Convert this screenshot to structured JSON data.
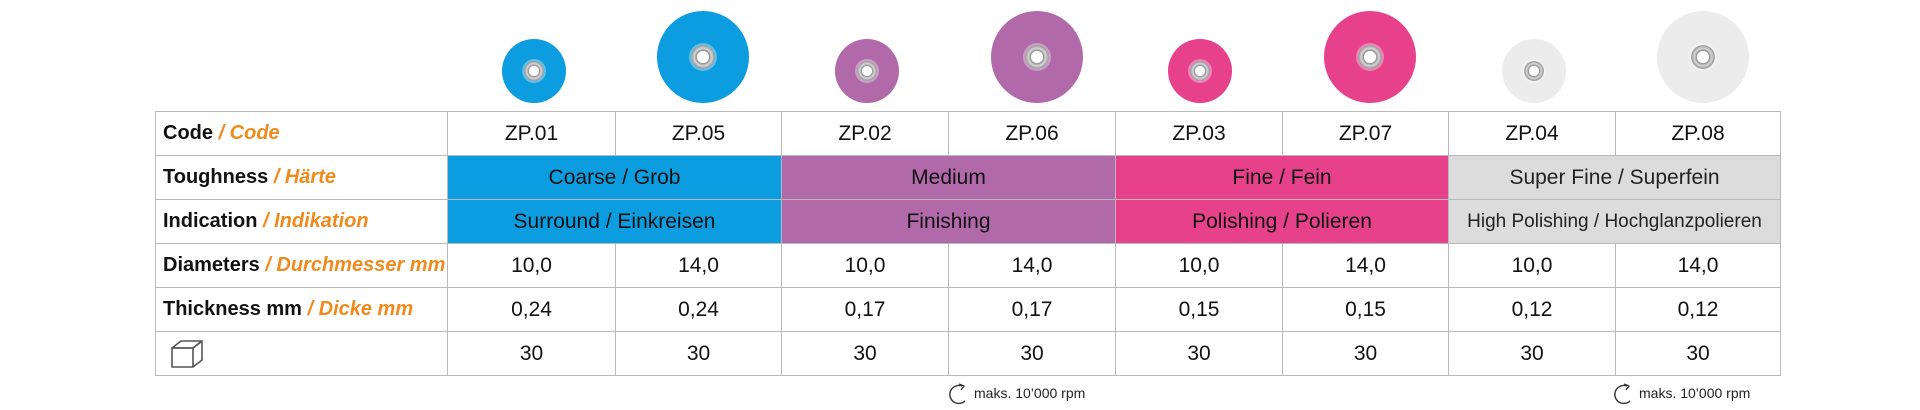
{
  "columns": [
    {
      "code": "ZP.01",
      "diameter": "10,0",
      "thickness": "0,24",
      "qty": "30",
      "color": "#0b9ddf",
      "size": "small"
    },
    {
      "code": "ZP.05",
      "diameter": "14,0",
      "thickness": "0,24",
      "qty": "30",
      "color": "#0b9ddf",
      "size": "large"
    },
    {
      "code": "ZP.02",
      "diameter": "10,0",
      "thickness": "0,17",
      "qty": "30",
      "color": "#b169aa",
      "size": "small"
    },
    {
      "code": "ZP.06",
      "diameter": "14,0",
      "thickness": "0,17",
      "qty": "30",
      "color": "#b169aa",
      "size": "large"
    },
    {
      "code": "ZP.03",
      "diameter": "10,0",
      "thickness": "0,15",
      "qty": "30",
      "color": "#e8418c",
      "size": "small"
    },
    {
      "code": "ZP.07",
      "diameter": "14,0",
      "thickness": "0,15",
      "qty": "30",
      "color": "#e8418c",
      "size": "large"
    },
    {
      "code": "ZP.04",
      "diameter": "10,0",
      "thickness": "0,12",
      "qty": "30",
      "color": "#ececec",
      "size": "small"
    },
    {
      "code": "ZP.08",
      "diameter": "14,0",
      "thickness": "0,12",
      "qty": "30",
      "color": "#ececec",
      "size": "large"
    }
  ],
  "groups": [
    {
      "toughness": "Coarse / Grob",
      "indication": "Surround / Einkreisen",
      "color": "#0b9ddf"
    },
    {
      "toughness": "Medium",
      "indication": "Finishing",
      "color": "#b169aa"
    },
    {
      "toughness": "Fine / Fein",
      "indication": "Polishing / Polieren",
      "color": "#e8418c"
    },
    {
      "toughness": "Super Fine / Superfein",
      "indication": "High Polishing / Hochglanzpolieren",
      "color": "#dcdcdc"
    }
  ],
  "labels": {
    "code": {
      "en": "Code",
      "de": "/ Code"
    },
    "toughness": {
      "en": "Toughness",
      "de": "/ Härte"
    },
    "indication": {
      "en": "Indication",
      "de": "/ Indikation"
    },
    "diameters": {
      "en": "Diameters",
      "de": "/ Durchmesser mm"
    },
    "thickness": {
      "en": "Thickness mm",
      "de": "/ Dicke mm"
    }
  },
  "icons": {
    "package": "box-icon",
    "rotation": "rotation-arrow-icon"
  },
  "notes": [
    {
      "text": "maks. 10’000 rpm",
      "under": "ZP.06"
    },
    {
      "text": "maks. 10’000 rpm",
      "under": "ZP.08"
    }
  ],
  "accent_color": "#f08a1c"
}
